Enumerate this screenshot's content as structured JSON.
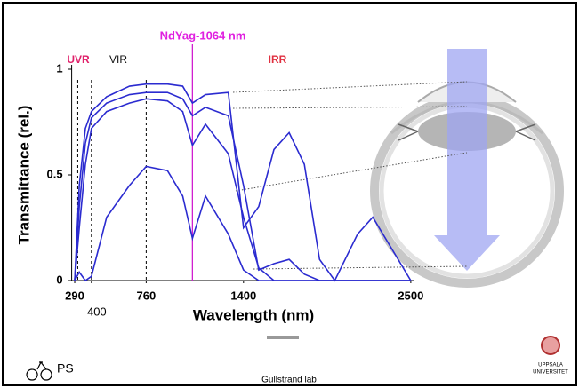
{
  "chart_data": {
    "type": "line",
    "x_label": "Wavelength (nm)",
    "y_label": "Transmittance (rel.)",
    "regions": [
      "UVR",
      "VIR",
      "IRR"
    ],
    "annotations": [
      {
        "label": "NdYag-1064 nm",
        "value": 1064,
        "color": "#d020d0"
      }
    ],
    "reference_lines": [
      310,
      400,
      760
    ],
    "x": [
      290,
      320,
      360,
      400,
      500,
      650,
      760,
      900,
      1000,
      1064,
      1150,
      1300,
      1400,
      1500,
      1600,
      1700,
      1800,
      1900,
      2000,
      2150,
      2250,
      2500
    ],
    "series": [
      {
        "color": "#2b2bd0",
        "values": [
          0,
          0.45,
          0.72,
          0.8,
          0.87,
          0.92,
          0.93,
          0.93,
          0.92,
          0.84,
          0.88,
          0.89,
          0.25,
          0.35,
          0.62,
          0.7,
          0.55,
          0.1,
          0,
          0.22,
          0.3,
          0
        ]
      },
      {
        "color": "#2b2bd0",
        "values": [
          0,
          0.35,
          0.65,
          0.77,
          0.84,
          0.88,
          0.89,
          0.89,
          0.86,
          0.78,
          0.82,
          0.78,
          0.45,
          0.05,
          0.08,
          0.1,
          0.03,
          0,
          0,
          0,
          0,
          0
        ]
      },
      {
        "color": "#2b2bd0",
        "values": [
          0,
          0.25,
          0.55,
          0.72,
          0.8,
          0.84,
          0.86,
          0.85,
          0.8,
          0.64,
          0.74,
          0.6,
          0.3,
          0.06,
          0,
          0,
          0,
          0,
          0,
          0,
          0,
          0
        ]
      },
      {
        "color": "#2b2bd0",
        "values": [
          0,
          0.04,
          0,
          0.02,
          0.3,
          0.45,
          0.54,
          0.52,
          0.4,
          0.2,
          0.4,
          0.22,
          0.05,
          0,
          0,
          0,
          0,
          0,
          0,
          0,
          0,
          0
        ]
      }
    ],
    "xlim": [
      270,
      2520
    ],
    "ylim": [
      0,
      1
    ],
    "xticks": [
      290,
      400,
      760,
      1400,
      2500
    ],
    "yticks": [
      0,
      0.5,
      1
    ]
  },
  "footer": {
    "left": "PS",
    "center": "Gullstrand lab",
    "logo_lines": [
      "UPPSALA",
      "UNIVERSITET"
    ]
  }
}
